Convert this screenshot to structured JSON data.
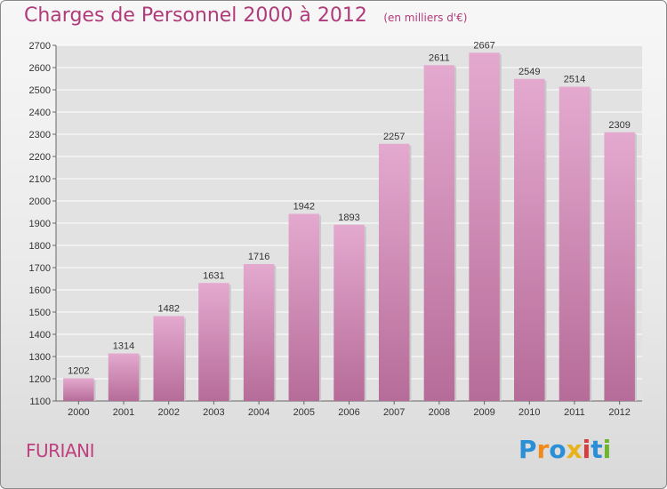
{
  "header": {
    "title": "Charges de Personnel 2000 à 2012",
    "subtitle": "(en milliers d'€)"
  },
  "commune": "FURIANI",
  "logo": {
    "text": "Proxiti",
    "letters": [
      {
        "ch": "P",
        "color": "#2a8fd6"
      },
      {
        "ch": "r",
        "color": "#f08a1c"
      },
      {
        "ch": "o",
        "color": "#2a8fd6"
      },
      {
        "ch": "x",
        "color": "#e8b21a"
      },
      {
        "ch": "i",
        "color": "#d63d3d"
      },
      {
        "ch": "t",
        "color": "#2a8fd6"
      },
      {
        "ch": "i",
        "color": "#6cb52d"
      }
    ]
  },
  "colors": {
    "bar_top": "#e4a9cf",
    "bar_bottom": "#b66c98",
    "title": "#b03a7a",
    "grid": "#ffffff"
  },
  "chart_data": {
    "type": "bar",
    "categories": [
      "2000",
      "2001",
      "2002",
      "2003",
      "2004",
      "2005",
      "2006",
      "2007",
      "2008",
      "2009",
      "2010",
      "2011",
      "2012"
    ],
    "values": [
      1202,
      1314,
      1482,
      1631,
      1716,
      1942,
      1893,
      2257,
      2611,
      2667,
      2549,
      2514,
      2309
    ],
    "ylim": [
      1100,
      2700
    ],
    "yticks": [
      1100,
      1200,
      1300,
      1400,
      1500,
      1600,
      1700,
      1800,
      1900,
      2000,
      2100,
      2200,
      2300,
      2400,
      2500,
      2600,
      2700
    ],
    "grid": true,
    "data_labels": true
  }
}
